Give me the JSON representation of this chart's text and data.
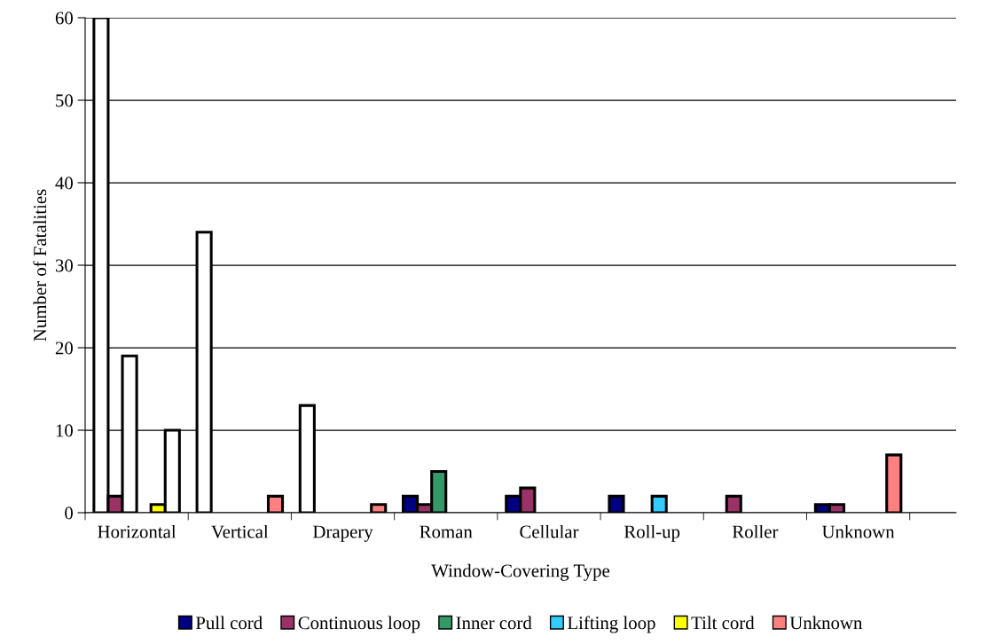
{
  "chart_data": {
    "type": "bar",
    "xlabel": "Window-Covering Type",
    "ylabel": "Number of Fatalities",
    "categories": [
      "Horizontal",
      "Vertical",
      "Drapery",
      "Roman",
      "Cellular",
      "Roll-up",
      "Roller",
      "Unknown"
    ],
    "series": [
      {
        "name": "Pull cord",
        "color": "#000080",
        "values": [
          60,
          34,
          13,
          2,
          2,
          2,
          null,
          1
        ],
        "colors": [
          "#ffffff",
          "#ffffff",
          "#ffffff",
          "#000080",
          "#000080",
          "#000080",
          "#000080",
          "#000080"
        ]
      },
      {
        "name": "Continuous loop",
        "color": "#993366",
        "values": [
          2,
          null,
          null,
          1,
          3,
          null,
          2,
          1
        ]
      },
      {
        "name": "Inner cord",
        "color": "#339966",
        "values": [
          19,
          null,
          null,
          5,
          null,
          null,
          null,
          null
        ],
        "colors": [
          "#ffffff",
          "#339966",
          "#339966",
          "#339966",
          "#339966",
          "#339966",
          "#339966",
          "#339966"
        ]
      },
      {
        "name": "Lifting loop",
        "color": "#33ccff",
        "values": [
          null,
          null,
          null,
          null,
          null,
          2,
          null,
          null
        ]
      },
      {
        "name": "Tilt cord",
        "color": "#ffff00",
        "values": [
          1,
          null,
          null,
          null,
          null,
          null,
          null,
          null
        ]
      },
      {
        "name": "Unknown",
        "color": "#ff8080",
        "values": [
          10,
          2,
          1,
          null,
          null,
          null,
          null,
          7
        ],
        "colors": [
          "#ffffff",
          "#ff8080",
          "#ff8080",
          "#ff8080",
          "#ff8080",
          "#ff8080",
          "#ff8080",
          "#ff8080"
        ]
      }
    ],
    "ylim": [
      0,
      60
    ],
    "yticks": [
      0,
      10,
      20,
      30,
      40,
      50,
      60
    ],
    "grid": "y",
    "legend": "bottom"
  }
}
